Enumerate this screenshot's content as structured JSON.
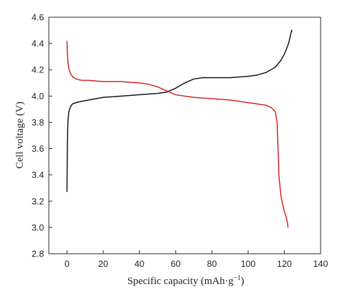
{
  "chart_data": {
    "type": "line",
    "title": "",
    "xlabel": "Specific capacity (mAh·g",
    "xlabel_sup": "−1",
    "xlabel_close": ")",
    "ylabel": "Cell voltage (V)",
    "xlim": [
      -10,
      140
    ],
    "ylim": [
      2.8,
      4.6
    ],
    "xticks": [
      0,
      20,
      40,
      60,
      80,
      100,
      120,
      140
    ],
    "yticks": [
      2.8,
      3.0,
      3.2,
      3.4,
      3.6,
      3.8,
      4.0,
      4.2,
      4.4,
      4.6
    ],
    "xtick_labels": [
      "0",
      "20",
      "40",
      "60",
      "80",
      "100",
      "120",
      "140"
    ],
    "ytick_labels": [
      "2.8",
      "3.0",
      "3.2",
      "3.4",
      "3.6",
      "3.8",
      "4.0",
      "4.2",
      "4.4",
      "4.6"
    ],
    "grid": false,
    "legend": "none",
    "series": [
      {
        "color": "#111111",
        "x": [
          0,
          0.2,
          0.5,
          1,
          2,
          3,
          5,
          8,
          12,
          20,
          30,
          40,
          50,
          55,
          60,
          65,
          70,
          75,
          80,
          90,
          100,
          105,
          110,
          115,
          118,
          120,
          121.5,
          122.5,
          123,
          123.5,
          124,
          124.2
        ],
        "y": [
          3.27,
          3.6,
          3.8,
          3.88,
          3.92,
          3.94,
          3.95,
          3.96,
          3.97,
          3.99,
          4.0,
          4.01,
          4.02,
          4.03,
          4.06,
          4.1,
          4.13,
          4.14,
          4.14,
          4.14,
          4.15,
          4.16,
          4.18,
          4.22,
          4.27,
          4.32,
          4.37,
          4.41,
          4.44,
          4.47,
          4.5,
          4.49
        ]
      },
      {
        "color": "#d42020",
        "x": [
          0,
          0.2,
          0.6,
          1,
          2,
          3,
          5,
          8,
          12,
          20,
          30,
          40,
          45,
          50,
          55,
          60,
          65,
          70,
          80,
          90,
          100,
          105,
          110,
          113,
          115,
          116,
          116.5,
          117,
          118,
          119,
          120,
          121,
          121.8,
          122
        ],
        "y": [
          4.42,
          4.33,
          4.25,
          4.21,
          4.17,
          4.15,
          4.13,
          4.12,
          4.12,
          4.11,
          4.11,
          4.1,
          4.09,
          4.07,
          4.04,
          4.01,
          4.0,
          3.99,
          3.98,
          3.97,
          3.95,
          3.94,
          3.93,
          3.91,
          3.88,
          3.8,
          3.6,
          3.4,
          3.25,
          3.18,
          3.12,
          3.08,
          3.03,
          3.0
        ]
      }
    ]
  }
}
